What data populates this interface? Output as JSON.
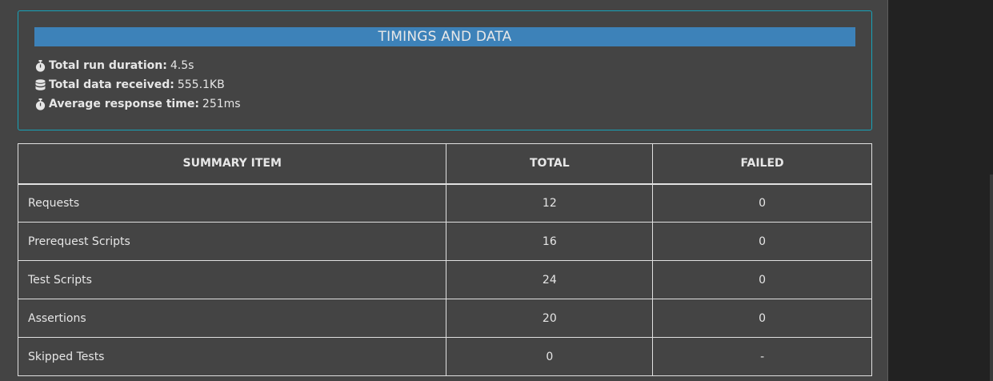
{
  "timings": {
    "title": "TIMINGS AND DATA",
    "stats": [
      {
        "icon": "stopwatch-icon",
        "label": "Total run duration:",
        "value": "4.5s"
      },
      {
        "icon": "database-icon",
        "label": "Total data received:",
        "value": "555.1KB"
      },
      {
        "icon": "stopwatch-icon",
        "label": "Average response time:",
        "value": "251ms"
      }
    ]
  },
  "summary": {
    "headers": [
      "SUMMARY ITEM",
      "TOTAL",
      "FAILED"
    ],
    "rows": [
      {
        "item": "Requests",
        "total": "12",
        "failed": "0"
      },
      {
        "item": "Prerequest Scripts",
        "total": "16",
        "failed": "0"
      },
      {
        "item": "Test Scripts",
        "total": "24",
        "failed": "0"
      },
      {
        "item": "Assertions",
        "total": "20",
        "failed": "0"
      },
      {
        "item": "Skipped Tests",
        "total": "0",
        "failed": "-"
      }
    ]
  },
  "colors": {
    "page_bg": "#444444",
    "title_bar": "#3d82b9",
    "card_border": "#17a2b8",
    "outer_bg": "#222222"
  }
}
